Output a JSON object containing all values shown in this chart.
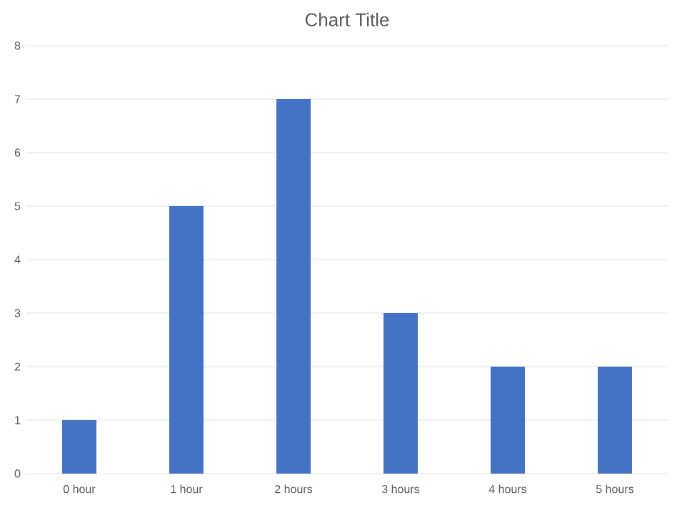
{
  "chart_data": {
    "type": "bar",
    "title": "Chart Title",
    "categories": [
      "0 hour",
      "1 hour",
      "2 hours",
      "3 hours",
      "4 hours",
      "5 hours"
    ],
    "values": [
      1,
      5,
      7,
      3,
      2,
      2
    ],
    "color": "#4472c4",
    "ylim": [
      0,
      8
    ],
    "yticks": [
      0,
      1,
      2,
      3,
      4,
      5,
      6,
      7,
      8
    ],
    "grid": "y"
  }
}
